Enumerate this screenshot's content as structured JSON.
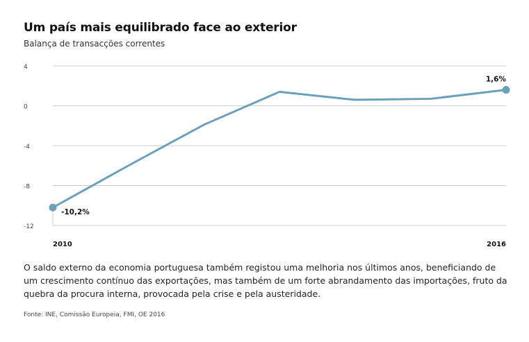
{
  "header": {
    "title": "Um país mais equilibrado face ao exterior",
    "subtitle": "Balança de transacções correntes"
  },
  "caption": "O saldo externo da economia portuguesa também registou uma melhoria nos últimos anos, beneficiando de um crescimento contínuo das exportações, mas também de um forte abrandamento das importações, fruto da quebra da procura interna, provocada pela crise e pela austeridade.",
  "source": "Fonte: INE, Comissão Europeia, FMI, OE 2016",
  "colors": {
    "line": "#6aa0bd",
    "grid": "#cccccc"
  },
  "chart_data": {
    "type": "line",
    "title": "Um país mais equilibrado face ao exterior",
    "subtitle": "Balança de transacções correntes",
    "x": [
      2010,
      2011,
      2012,
      2013,
      2014,
      2015,
      2016
    ],
    "x_tick_labels": [
      "2010",
      "2016"
    ],
    "y_ticks": [
      4,
      0,
      -4,
      -8,
      -12
    ],
    "ylim": [
      -12,
      4
    ],
    "grid": true,
    "series": [
      {
        "values": [
          -10.2,
          -6.0,
          -1.9,
          1.4,
          0.6,
          0.7,
          1.6
        ]
      }
    ],
    "annotations": [
      {
        "x": 2010,
        "label": "-10,2%"
      },
      {
        "x": 2016,
        "label": "1,6%"
      }
    ]
  }
}
